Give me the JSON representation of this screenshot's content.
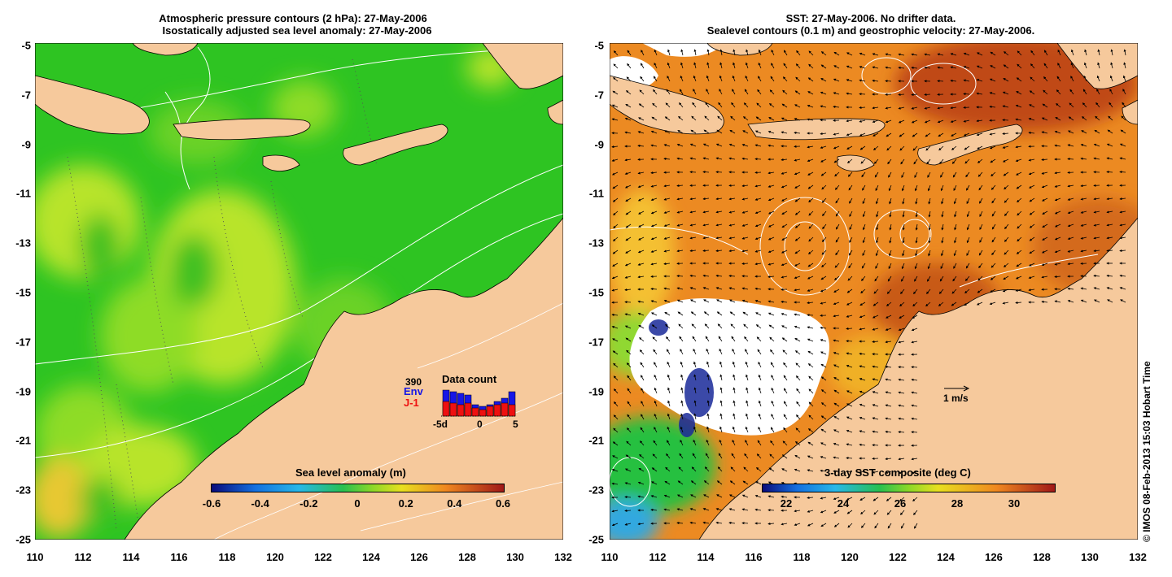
{
  "left_panel": {
    "title_line1": "Atmospheric pressure contours (2 hPa): 27-May-2006",
    "title_line2": "Isostatically adjusted sea level anomaly: 27-May-2006",
    "colorbar_label": "Sea level anomaly (m)",
    "colorbar_ticks": [
      "-0.6",
      "-0.4",
      "-0.2",
      "0",
      "0.2",
      "0.4",
      "0.6"
    ],
    "inset": {
      "title": "Data count",
      "count": "390",
      "series": [
        "Env",
        "J-1"
      ],
      "axis_ticks": [
        "-5d",
        "0",
        "5"
      ]
    }
  },
  "right_panel": {
    "title_line1": "SST: 27-May-2006. No drifter data.",
    "title_line2": "Sealevel contours (0.1 m) and geostrophic velocity: 27-May-2006.",
    "colorbar_label": "3-day SST composite (deg C)",
    "colorbar_ticks": [
      "22",
      "24",
      "26",
      "28",
      "30"
    ],
    "velocity_scale_label": "1 m/s"
  },
  "axes": {
    "x_ticks": [
      "110",
      "112",
      "114",
      "116",
      "118",
      "120",
      "122",
      "124",
      "126",
      "128",
      "130",
      "132"
    ],
    "y_ticks": [
      "-5",
      "-7",
      "-9",
      "-11",
      "-13",
      "-15",
      "-17",
      "-19",
      "-21",
      "-23",
      "-25"
    ]
  },
  "credit": "© IMOS 08-Feb-2013 15:03 Hobart Time",
  "colors": {
    "land": "#f6c99c",
    "ocean_green": "#22c41e",
    "anomaly_yellow": "#b6e82a",
    "sst_orange": "#e8821e",
    "sst_red": "#c04a12",
    "cloud_white": "#ffffff",
    "env_bar": "#1616e6",
    "j1_bar": "#ee1010"
  }
}
